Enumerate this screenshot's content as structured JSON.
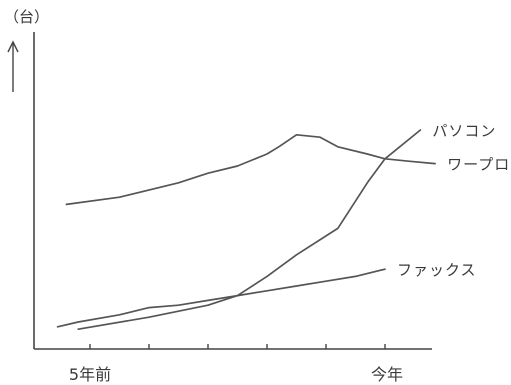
{
  "chart_data": {
    "type": "line",
    "ylabel": "（台）",
    "x_tick_labels": [
      "5年前",
      "今年"
    ],
    "x": [
      -5,
      -4,
      -3,
      -2,
      -1,
      0
    ],
    "ylim": [
      0,
      100
    ],
    "grid": false,
    "legend": "none",
    "series": [
      {
        "name": "パソコン",
        "points": [
          {
            "x": -5.2,
            "y": 7
          },
          {
            "x": -4,
            "y": 12
          },
          {
            "x": -3,
            "y": 17
          },
          {
            "x": -2.5,
            "y": 21
          },
          {
            "x": -2,
            "y": 29
          },
          {
            "x": -1.5,
            "y": 38
          },
          {
            "x": -0.8,
            "y": 49
          },
          {
            "x": -0.3,
            "y": 68
          },
          {
            "x": 0,
            "y": 78
          },
          {
            "x": 0.6,
            "y": 90
          }
        ]
      },
      {
        "name": "ワープロ",
        "points": [
          {
            "x": -5.4,
            "y": 59
          },
          {
            "x": -4.5,
            "y": 62
          },
          {
            "x": -3.5,
            "y": 68
          },
          {
            "x": -3,
            "y": 72
          },
          {
            "x": -2.5,
            "y": 75
          },
          {
            "x": -2,
            "y": 80
          },
          {
            "x": -1.8,
            "y": 83
          },
          {
            "x": -1.5,
            "y": 88
          },
          {
            "x": -1.1,
            "y": 87
          },
          {
            "x": -0.8,
            "y": 83
          },
          {
            "x": -0.3,
            "y": 80
          },
          {
            "x": 0,
            "y": 78
          },
          {
            "x": 0.4,
            "y": 77
          },
          {
            "x": 0.85,
            "y": 76
          }
        ]
      },
      {
        "name": "ファックス",
        "points": [
          {
            "x": -5.55,
            "y": 8
          },
          {
            "x": -5.2,
            "y": 10
          },
          {
            "x": -4.5,
            "y": 13
          },
          {
            "x": -4,
            "y": 16
          },
          {
            "x": -3.5,
            "y": 17
          },
          {
            "x": -3,
            "y": 19
          },
          {
            "x": -2.5,
            "y": 21
          },
          {
            "x": -2,
            "y": 23
          },
          {
            "x": -1.5,
            "y": 25
          },
          {
            "x": -1,
            "y": 27
          },
          {
            "x": -0.5,
            "y": 29
          },
          {
            "x": 0,
            "y": 32
          }
        ]
      }
    ]
  }
}
